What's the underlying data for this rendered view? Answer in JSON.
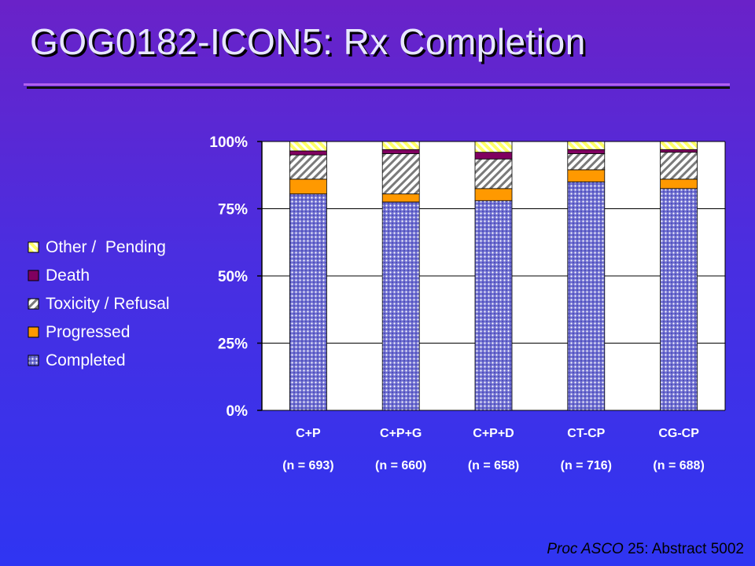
{
  "slide": {
    "title": "GOG0182-ICON5:  Rx Completion",
    "source_italic": "Proc ASCO",
    "source_rest": " 25: Abstract 5002"
  },
  "colors": {
    "completed": "#7f7fd8",
    "progressed": "#ff9900",
    "toxicity": "#9a9a9a",
    "death": "#800060",
    "other": "#ffff80",
    "plot_bg": "#ffffff",
    "gridline": "#000000"
  },
  "chart_data": {
    "type": "bar",
    "stacked": true,
    "categories": [
      "C+P",
      "C+P+G",
      "C+P+D",
      "CT-CP",
      "CG-CP"
    ],
    "sample_sizes": [
      "(n = 693)",
      "(n = 660)",
      "(n = 658)",
      "(n = 716)",
      "(n = 688)"
    ],
    "series": [
      {
        "name": "Completed",
        "values": [
          80.5,
          77.5,
          78,
          85,
          82.5
        ],
        "pattern": "dots"
      },
      {
        "name": "Progressed",
        "values": [
          5.5,
          3,
          4.5,
          4.5,
          3.5
        ],
        "pattern": "solid"
      },
      {
        "name": "Toxicity / Refusal",
        "values": [
          9,
          15,
          11,
          6,
          10
        ],
        "pattern": "hatch"
      },
      {
        "name": "Death",
        "values": [
          1.5,
          1.5,
          2.5,
          1.5,
          1
        ],
        "pattern": "solid"
      },
      {
        "name": "Other /  Pending",
        "values": [
          3.5,
          3,
          4,
          3,
          3
        ],
        "pattern": "stripe"
      }
    ],
    "legend_order": [
      "Other /  Pending",
      "Death",
      "Toxicity / Refusal",
      "Progressed",
      "Completed"
    ],
    "y_ticks": [
      "0%",
      "25%",
      "50%",
      "75%",
      "100%"
    ],
    "ylim": [
      0,
      100
    ],
    "legend_position": "left",
    "grid": true
  }
}
